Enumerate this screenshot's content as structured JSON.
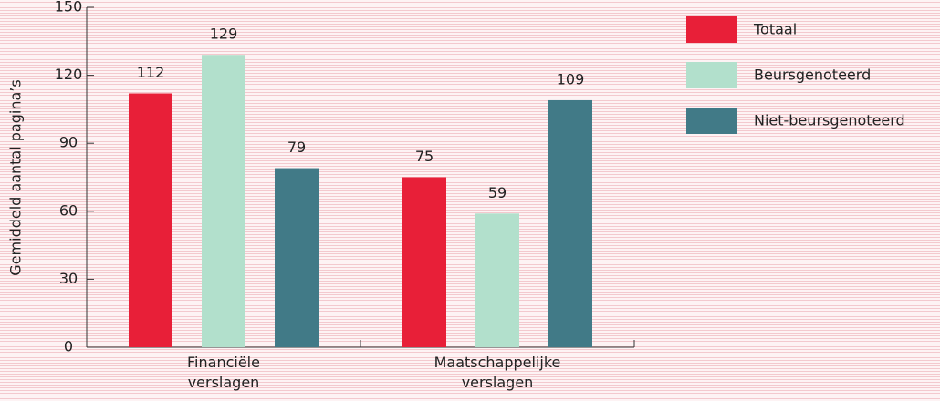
{
  "chart_data": {
    "type": "bar",
    "y_label": "Gemiddeld aantal pagina’s",
    "categories": [
      "Financiële verslagen",
      "Maatschappelijke verslagen"
    ],
    "series": [
      {
        "name": "Totaal",
        "color": "#e81f38",
        "values": [
          112,
          75
        ]
      },
      {
        "name": "Beursgenoteerd",
        "color": "#b2e0cc",
        "values": [
          129,
          59
        ]
      },
      {
        "name": "Niet-beursgenoteerd",
        "color": "#417a87",
        "values": [
          79,
          109
        ]
      }
    ],
    "ylim": [
      0,
      150
    ],
    "yticks": [
      0,
      30,
      60,
      90,
      120,
      150
    ],
    "legend": "right"
  }
}
